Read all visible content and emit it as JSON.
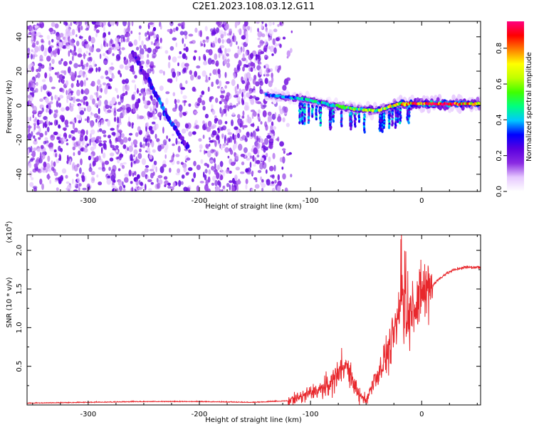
{
  "title": "C2E1.2023.108.03.12.G11",
  "chart_data": [
    {
      "type": "heatmap",
      "xlabel": "Height of straight line (km)",
      "ylabel": "Frequency (Hz)",
      "xlim": [
        -355,
        53
      ],
      "ylim": [
        -50,
        49
      ],
      "x_ticks": [
        -300,
        -200,
        -100,
        0
      ],
      "x_tick_labels": [
        "-300",
        "-200",
        "-100",
        "0"
      ],
      "y_ticks": [
        -40,
        -20,
        0,
        20,
        40
      ],
      "y_tick_labels": [
        "-40",
        "-20",
        "0",
        "20",
        "40"
      ],
      "colorbar": {
        "label": "Normalized spectral amplitude",
        "range": [
          0,
          0.95
        ],
        "ticks": [
          0,
          0.2,
          0.4,
          0.6,
          0.8
        ],
        "tick_labels": [
          "0.0",
          "0.2",
          "0.4",
          "0.6",
          "0.8"
        ],
        "colors": [
          "#ffffff",
          "#e6c8ff",
          "#8a2be2",
          "#5a00e0",
          "#0000ff",
          "#00c8ff",
          "#00ff80",
          "#40ff00",
          "#c0ff00",
          "#ffff00",
          "#ff8000",
          "#ff0000",
          "#ff0080"
        ]
      },
      "ridge": {
        "x": [
          -140,
          -120,
          -100,
          -80,
          -60,
          -40,
          -20,
          0,
          20,
          53
        ],
        "y": [
          6,
          5,
          3,
          0,
          -2,
          -3,
          1,
          1,
          1,
          1
        ],
        "amplitude": [
          0.3,
          0.35,
          0.4,
          0.45,
          0.5,
          0.55,
          0.65,
          0.8,
          0.85,
          0.6
        ]
      },
      "secondary_streak": {
        "x": [
          -260,
          -250,
          -240,
          -230,
          -220,
          -210
        ],
        "y": [
          32,
          20,
          8,
          -5,
          -15,
          -25
        ],
        "amplitude": [
          0.2,
          0.2,
          0.25,
          0.3,
          0.25,
          0.2
        ]
      },
      "noise_region": {
        "x": [
          -355,
          -125
        ],
        "amplitude": 0.12
      }
    },
    {
      "type": "line",
      "xlabel": "Height of straight line (km)",
      "ylabel": "SNR (10 * v/v)",
      "y_multiplier": "(x10",
      "y_multiplier_exp": "4",
      "y_multiplier_close": ")",
      "xlim": [
        -355,
        53
      ],
      "ylim": [
        0,
        2.2
      ],
      "x_ticks": [
        -300,
        -200,
        -100,
        0
      ],
      "x_tick_labels": [
        "-300",
        "-200",
        "-100",
        "0"
      ],
      "y_ticks": [
        0.5,
        1.0,
        1.5,
        2.0
      ],
      "y_tick_labels": [
        "0.5",
        "1.0",
        "1.5",
        "2.0"
      ],
      "line_color": "#e8272c",
      "series": [
        {
          "x": [
            -355,
            -300,
            -250,
            -200,
            -150,
            -120,
            -110,
            -100,
            -90,
            -80,
            -75,
            -70,
            -65,
            -60,
            -55,
            -50,
            -45,
            -40,
            -35,
            -30,
            -25,
            -20,
            -17,
            -15,
            -13,
            -10,
            -5,
            0,
            5,
            10,
            15,
            20,
            25,
            30,
            35,
            40,
            45,
            53
          ],
          "y": [
            0.02,
            0.03,
            0.04,
            0.04,
            0.03,
            0.05,
            0.1,
            0.15,
            0.2,
            0.3,
            0.45,
            0.55,
            0.4,
            0.25,
            0.1,
            0.05,
            0.25,
            0.4,
            0.55,
            0.7,
            0.9,
            1.1,
            1.5,
            1.35,
            1.05,
            1.2,
            1.3,
            1.4,
            1.5,
            1.55,
            1.62,
            1.68,
            1.72,
            1.75,
            1.77,
            1.78,
            1.78,
            1.78
          ]
        }
      ]
    }
  ]
}
